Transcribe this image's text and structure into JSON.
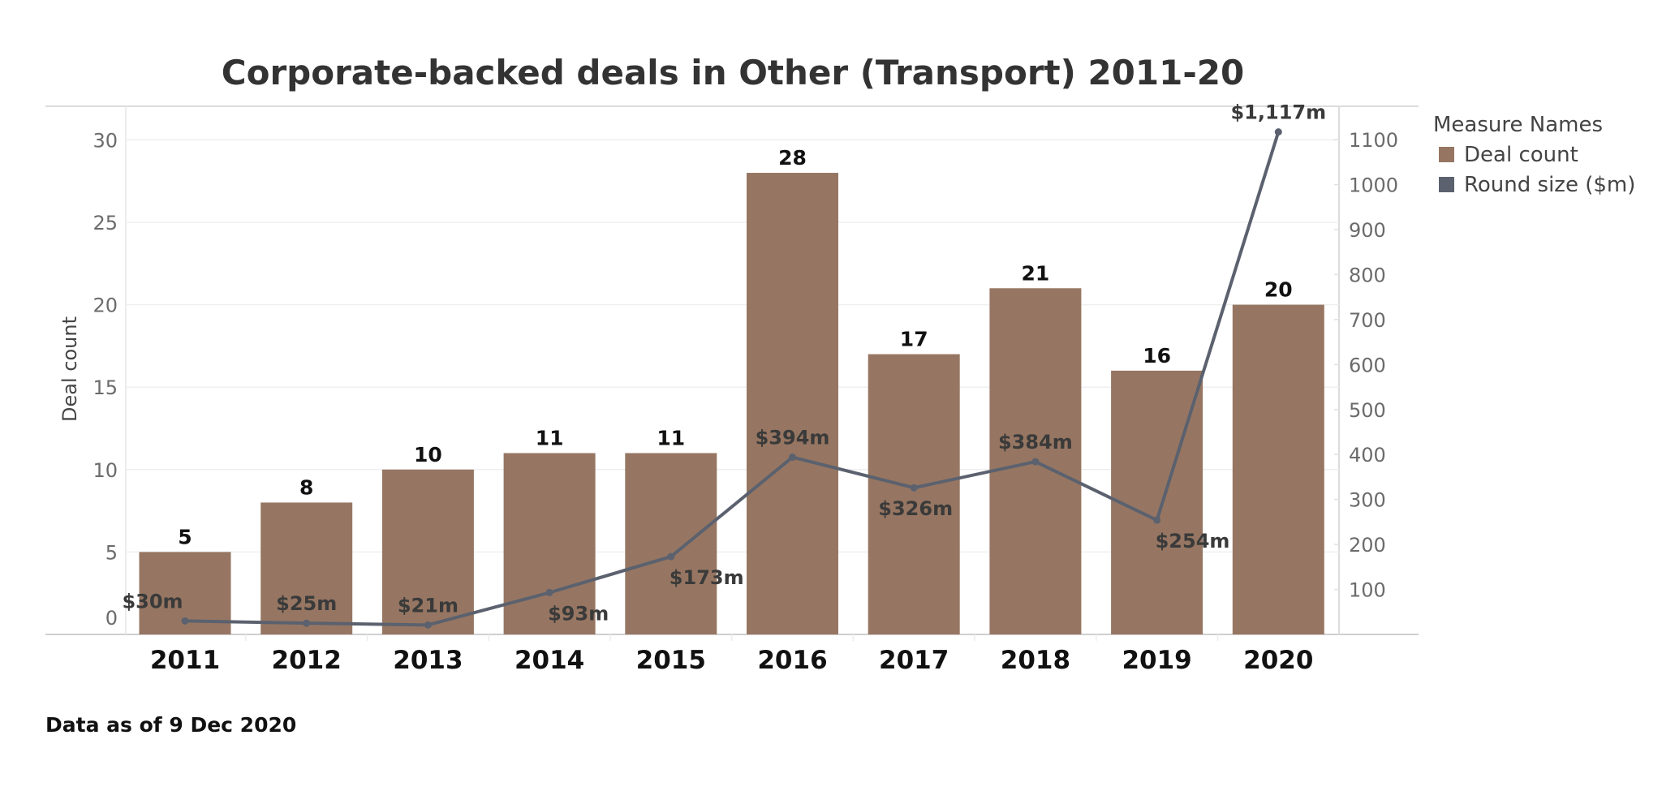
{
  "chart_data": {
    "type": "bar",
    "title": "Corporate-backed deals in Other (Transport) 2011-20",
    "categories": [
      "2011",
      "2012",
      "2013",
      "2014",
      "2015",
      "2016",
      "2017",
      "2018",
      "2019",
      "2020"
    ],
    "series": [
      {
        "name": "Deal count",
        "type": "bar",
        "axis": "left",
        "color": "#967662",
        "values": [
          5,
          8,
          10,
          11,
          11,
          28,
          17,
          21,
          16,
          20
        ],
        "labels": [
          "5",
          "8",
          "10",
          "11",
          "11",
          "28",
          "17",
          "21",
          "16",
          "20"
        ]
      },
      {
        "name": "Round size ($m)",
        "type": "line",
        "axis": "right",
        "color": "#5b616e",
        "values": [
          30,
          25,
          21,
          93,
          173,
          394,
          326,
          384,
          254,
          1117
        ],
        "labels": [
          "$30m",
          "$25m",
          "$21m",
          "$93m",
          "$173m",
          "$394m",
          "$326m",
          "$384m",
          "$254m",
          "$1,117m"
        ],
        "label_positions": [
          "above-left",
          "above",
          "above",
          "below-right",
          "below-right",
          "above",
          "below",
          "above",
          "below-right",
          "above"
        ]
      }
    ],
    "xlabel": "",
    "ylabel": "Deal count",
    "ylabel_right": "",
    "ylim": [
      0,
      31
    ],
    "ylim_right": [
      0,
      1175
    ],
    "yticks": [
      0,
      5,
      10,
      15,
      20,
      25,
      30
    ],
    "yticks_right": [
      100,
      200,
      300,
      400,
      500,
      600,
      700,
      800,
      900,
      1000,
      1100
    ],
    "grid": true,
    "legend": {
      "title": "Measure Names",
      "placement": "top-right",
      "entries": [
        {
          "label": "Deal count",
          "color": "#967662"
        },
        {
          "label": "Round size ($m)",
          "color": "#5b616e"
        }
      ]
    },
    "footnote": "Data as of 9 Dec 2020"
  }
}
